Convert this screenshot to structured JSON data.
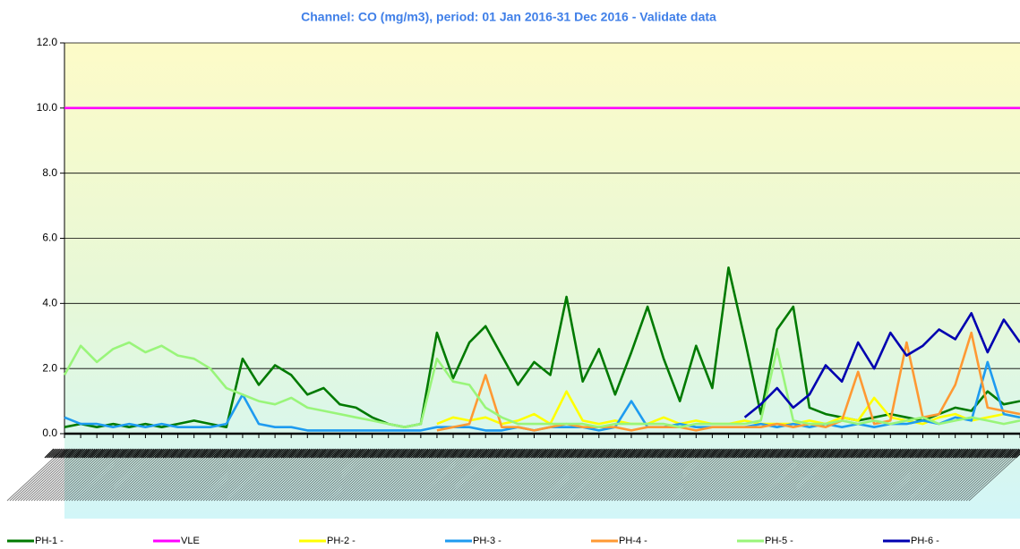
{
  "chart_data": {
    "type": "line",
    "title": "Channel: CO (mg/m3), period: 01 Jan 2016-31 Dec 2016 - Validate data",
    "ylim": [
      0,
      12
    ],
    "yticks": [
      {
        "value": 0,
        "label": "0.0"
      },
      {
        "value": 2,
        "label": "2.0"
      },
      {
        "value": 4,
        "label": "4.0"
      },
      {
        "value": 6,
        "label": "6.0"
      },
      {
        "value": 8,
        "label": "8.0"
      },
      {
        "value": 10,
        "label": "10.0"
      },
      {
        "value": 12,
        "label": "12.0"
      }
    ],
    "grid": true,
    "legend": "bottom",
    "categories": [
      null,
      null,
      null,
      null,
      null,
      null,
      null,
      null,
      null,
      null,
      null,
      null,
      null,
      null,
      null,
      null,
      null,
      null,
      null,
      null,
      null,
      null,
      null,
      null,
      null,
      null,
      null,
      null,
      null,
      null,
      null,
      null,
      null,
      null,
      null,
      null,
      null,
      null,
      null,
      null,
      null,
      null,
      null,
      null,
      null,
      null,
      null,
      null,
      null,
      null,
      null,
      null,
      null,
      null,
      null,
      null,
      null,
      null,
      null,
      null
    ],
    "series": [
      {
        "name": "PH-1 -",
        "color": "#007a00",
        "values": [
          0.2,
          0.3,
          0.2,
          0.3,
          0.2,
          0.3,
          0.2,
          0.3,
          0.4,
          0.3,
          0.2,
          2.3,
          1.5,
          2.1,
          1.8,
          1.2,
          1.4,
          0.9,
          0.8,
          0.5,
          0.3,
          0.2,
          0.3,
          3.1,
          1.7,
          2.8,
          3.3,
          2.4,
          1.5,
          2.2,
          1.8,
          4.2,
          1.6,
          2.6,
          1.2,
          2.5,
          3.9,
          2.3,
          1.0,
          2.7,
          1.4,
          5.1,
          2.9,
          0.6,
          3.2,
          3.9,
          0.8,
          0.6,
          0.5,
          0.4,
          0.5,
          0.6,
          0.5,
          0.4,
          0.6,
          0.8,
          0.7,
          1.3,
          0.9,
          1.0
        ]
      },
      {
        "name": "VLE",
        "color": "#ff00ff",
        "values": [
          10,
          10,
          10,
          10,
          10,
          10,
          10,
          10,
          10,
          10,
          10,
          10,
          10,
          10,
          10,
          10,
          10,
          10,
          10,
          10,
          10,
          10,
          10,
          10,
          10,
          10,
          10,
          10,
          10,
          10,
          10,
          10,
          10,
          10,
          10,
          10,
          10,
          10,
          10,
          10,
          10,
          10,
          10,
          10,
          10,
          10,
          10,
          10,
          10,
          10,
          10,
          10,
          10,
          10,
          10,
          10,
          10,
          10,
          10,
          10
        ]
      },
      {
        "name": "PH-2 -",
        "color": "#ffff00",
        "values": [
          null,
          null,
          null,
          null,
          null,
          null,
          null,
          null,
          null,
          null,
          null,
          null,
          null,
          null,
          null,
          null,
          null,
          null,
          null,
          null,
          null,
          null,
          null,
          0.3,
          0.5,
          0.4,
          0.5,
          0.3,
          0.4,
          0.6,
          0.3,
          1.3,
          0.4,
          0.3,
          0.4,
          0.3,
          0.3,
          0.5,
          0.3,
          0.4,
          0.3,
          0.3,
          0.4,
          0.3,
          0.3,
          0.3,
          0.4,
          0.3,
          0.5,
          0.4,
          1.1,
          0.5,
          0.4,
          0.3,
          0.5,
          0.6,
          0.4,
          0.5,
          0.6,
          0.5
        ]
      },
      {
        "name": "PH-3 -",
        "color": "#1e9bf0",
        "values": [
          0.5,
          0.3,
          0.3,
          0.2,
          0.3,
          0.2,
          0.3,
          0.2,
          0.2,
          0.2,
          0.3,
          1.2,
          0.3,
          0.2,
          0.2,
          0.1,
          0.1,
          0.1,
          0.1,
          0.1,
          0.1,
          0.1,
          0.1,
          0.2,
          0.2,
          0.2,
          0.1,
          0.1,
          0.2,
          0.1,
          0.2,
          0.2,
          0.2,
          0.1,
          0.2,
          1.0,
          0.2,
          0.2,
          0.3,
          0.2,
          0.2,
          0.2,
          0.2,
          0.3,
          0.2,
          0.3,
          0.2,
          0.3,
          0.2,
          0.3,
          0.2,
          0.3,
          0.3,
          0.4,
          0.3,
          0.5,
          0.4,
          2.2,
          0.6,
          0.5
        ]
      },
      {
        "name": "PH-4 -",
        "color": "#ff9933",
        "values": [
          null,
          null,
          null,
          null,
          null,
          null,
          null,
          null,
          null,
          null,
          null,
          null,
          null,
          null,
          null,
          null,
          null,
          null,
          null,
          null,
          null,
          null,
          null,
          0.1,
          0.2,
          0.3,
          1.8,
          0.2,
          0.2,
          0.1,
          0.2,
          0.3,
          0.2,
          0.2,
          0.2,
          0.1,
          0.2,
          0.2,
          0.2,
          0.1,
          0.2,
          0.2,
          0.2,
          0.2,
          0.3,
          0.2,
          0.3,
          0.2,
          0.4,
          1.9,
          0.3,
          0.4,
          2.8,
          0.5,
          0.6,
          1.5,
          3.1,
          0.8,
          0.7,
          0.6
        ]
      },
      {
        "name": "PH-5 -",
        "color": "#99f57a",
        "values": [
          1.8,
          2.7,
          2.2,
          2.6,
          2.8,
          2.5,
          2.7,
          2.4,
          2.3,
          2.0,
          1.4,
          1.2,
          1.0,
          0.9,
          1.1,
          0.8,
          0.7,
          0.6,
          0.5,
          0.4,
          0.3,
          0.2,
          0.3,
          2.3,
          1.6,
          1.5,
          0.8,
          0.5,
          0.3,
          0.3,
          0.3,
          0.3,
          0.3,
          0.2,
          0.3,
          0.3,
          0.3,
          0.3,
          0.2,
          0.3,
          0.3,
          0.3,
          0.3,
          0.4,
          2.6,
          0.4,
          0.3,
          0.3,
          0.4,
          0.3,
          0.4,
          0.3,
          0.4,
          0.5,
          0.3,
          0.4,
          0.5,
          0.4,
          0.3,
          0.4
        ]
      },
      {
        "name": "PH-6 -",
        "color": "#0000b0",
        "values": [
          null,
          null,
          null,
          null,
          null,
          null,
          null,
          null,
          null,
          null,
          null,
          null,
          null,
          null,
          null,
          null,
          null,
          null,
          null,
          null,
          null,
          null,
          null,
          null,
          null,
          null,
          null,
          null,
          null,
          null,
          null,
          null,
          null,
          null,
          null,
          null,
          null,
          null,
          null,
          null,
          null,
          null,
          0.5,
          0.9,
          1.4,
          0.8,
          1.2,
          2.1,
          1.6,
          2.8,
          2.0,
          3.1,
          2.4,
          2.7,
          3.2,
          2.9,
          3.7,
          2.5,
          3.5,
          2.8
        ]
      }
    ]
  }
}
